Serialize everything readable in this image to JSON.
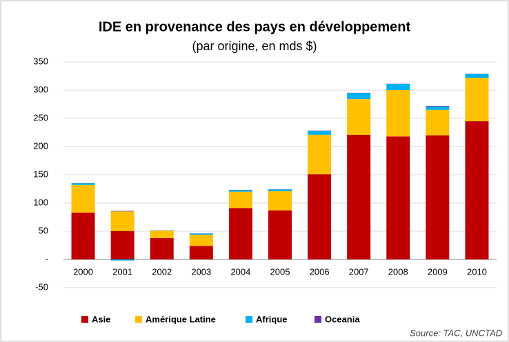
{
  "chart_data": {
    "type": "bar",
    "stacked": true,
    "title": "IDE en provenance des pays en développement",
    "subtitle": "(par origine, en mds $)",
    "source": "Source: TAC, UNCTAD",
    "categories": [
      "2000",
      "2001",
      "2002",
      "2003",
      "2004",
      "2005",
      "2006",
      "2007",
      "2008",
      "2009",
      "2010"
    ],
    "series": [
      {
        "name": "Asie",
        "color": "#c00000",
        "values": [
          83,
          50,
          38,
          24,
          91,
          87,
          151,
          221,
          218,
          220,
          245
        ]
      },
      {
        "name": "Amérique Latine",
        "color": "#ffc000",
        "values": [
          49,
          35,
          13,
          20,
          29,
          34,
          70,
          63,
          82,
          45,
          77
        ]
      },
      {
        "name": "Afrique",
        "color": "#00b0f0",
        "values": [
          3,
          -2,
          0.5,
          2,
          3,
          3,
          7,
          11,
          11,
          6,
          7
        ]
      },
      {
        "name": "Oceania",
        "color": "#7030a0",
        "values": [
          0.3,
          1,
          0.2,
          0.2,
          0.3,
          0.3,
          0.3,
          0.3,
          0.3,
          1,
          0.3
        ]
      }
    ],
    "ylim": [
      -50,
      350
    ],
    "yticks": [
      -50,
      {
        "value": 0,
        "label": "-"
      },
      50,
      100,
      150,
      200,
      250,
      300,
      350
    ],
    "grid": true,
    "legend": "bottom"
  }
}
